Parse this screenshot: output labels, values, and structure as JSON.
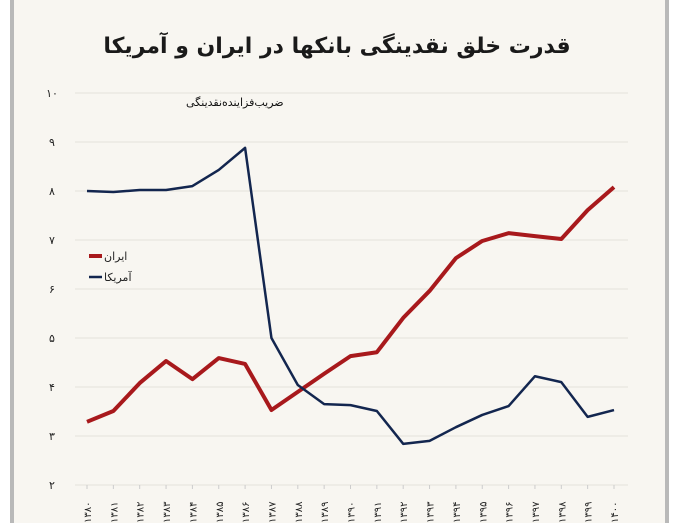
{
  "chart_data": {
    "type": "line",
    "title": "قدرت خلق نقدینگی بانکها در ایران و آمریکا",
    "ylabel": "ضریب‌فزاینده‌نقدینگی",
    "ylim": [
      2,
      10
    ],
    "yticks": [
      "۲",
      "۳",
      "۴",
      "۵",
      "۶",
      "۷",
      "۸",
      "۹",
      "۱۰"
    ],
    "grid": true,
    "legend_position": "left-middle",
    "categories": [
      "۱۳۸۰",
      "۱۳۸۱",
      "۱۳۸۲",
      "۱۳۸۳",
      "۱۳۸۴",
      "۱۳۸۵",
      "۱۳۸۶",
      "۱۳۸۷",
      "۱۳۸۸",
      "۱۳۸۹",
      "۱۳۹۰",
      "۱۳۹۱",
      "۱۳۹۲",
      "۱۳۹۳",
      "۱۳۹۴",
      "۱۳۹۵",
      "۱۳۹۶",
      "۱۳۹۷",
      "۱۳۹۸",
      "۱۳۹۹",
      "۱۴۰۰"
    ],
    "series": [
      {
        "name": "ایران",
        "color": "#a8191c",
        "values": [
          3.29,
          3.51,
          4.08,
          4.53,
          4.16,
          4.59,
          4.47,
          3.53,
          3.9,
          4.27,
          4.63,
          4.71,
          5.41,
          5.96,
          6.63,
          6.98,
          7.14,
          7.08,
          7.02,
          7.61,
          8.08
        ]
      },
      {
        "name": "آمریکا",
        "color": "#13264f",
        "values": [
          8.0,
          7.98,
          8.02,
          8.02,
          8.1,
          8.43,
          8.88,
          5.0,
          4.04,
          3.65,
          3.63,
          3.51,
          2.84,
          2.9,
          3.18,
          3.43,
          3.61,
          4.22,
          4.1,
          3.39,
          3.53
        ]
      }
    ]
  }
}
